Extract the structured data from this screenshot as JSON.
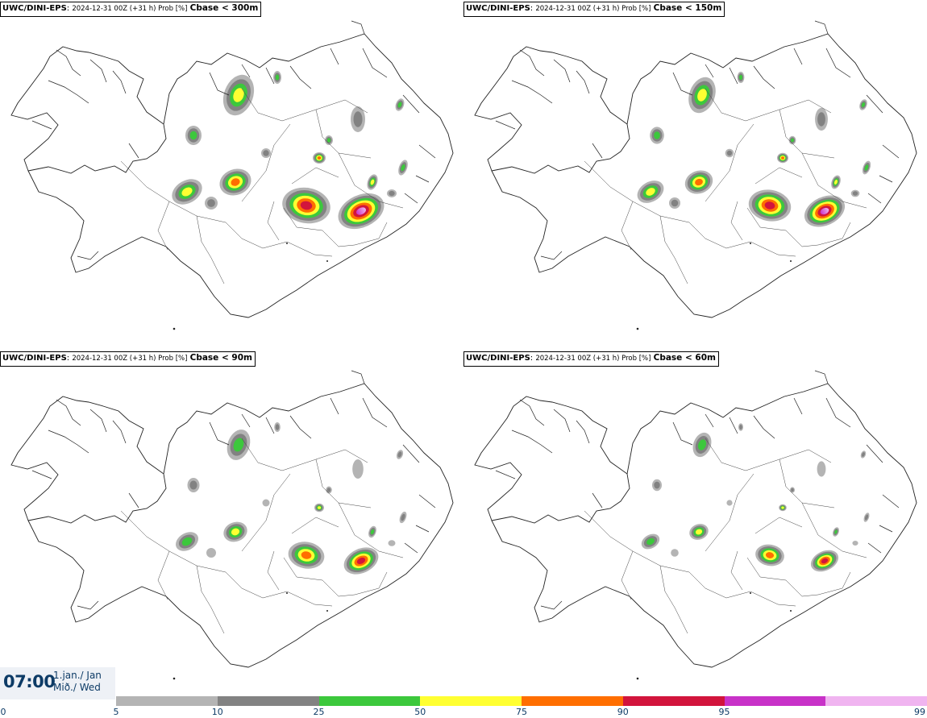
{
  "panels": [
    {
      "model": "UWC/DINI-EPS",
      "meta": "2024-12-31 00Z (+31 h) Prob [%]",
      "field": "Cbase < 300m",
      "level": 4
    },
    {
      "model": "UWC/DINI-EPS",
      "meta": "2024-12-31 00Z (+31 h) Prob [%]",
      "field": "Cbase < 150m",
      "level": 3
    },
    {
      "model": "UWC/DINI-EPS",
      "meta": "2024-12-31 00Z (+31 h) Prob [%]",
      "field": "Cbase < 90m",
      "level": 2
    },
    {
      "model": "UWC/DINI-EPS",
      "meta": "2024-12-31 00Z (+31 h) Prob [%]",
      "field": "Cbase < 60m",
      "level": 1
    }
  ],
  "time": {
    "clock": "07:00",
    "date_line1": "1.jan./ Jan",
    "date_line2": "Mið./ Wed"
  },
  "legend": {
    "ticks": [
      "0",
      "5",
      "10",
      "25",
      "50",
      "75",
      "90",
      "95",
      "99"
    ],
    "colors": [
      "#b4b4b4",
      "#828282",
      "#3cc83c",
      "#ffff32",
      "#ff6e00",
      "#d2143c",
      "#c832c8",
      "#f0b4f0"
    ]
  }
}
